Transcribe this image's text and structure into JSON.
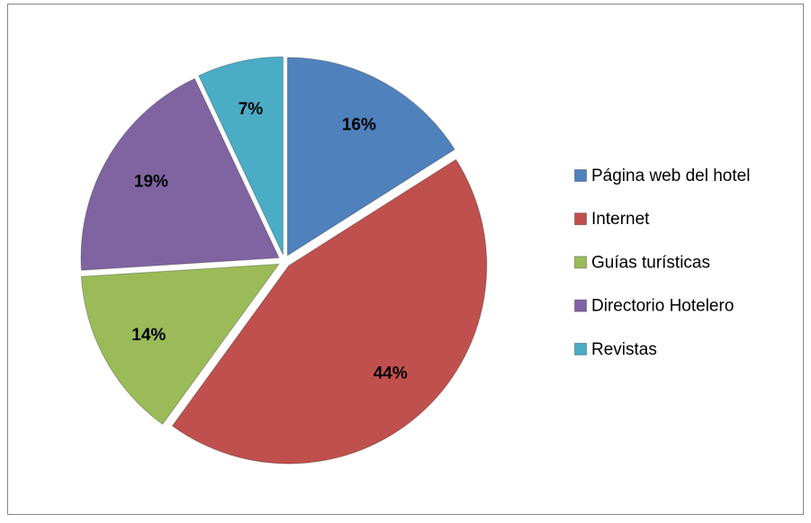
{
  "chart_data": {
    "type": "pie",
    "categories": [
      "Página web del hotel",
      "Internet",
      "Guías turísticas",
      "Directorio Hotelero",
      "Revistas"
    ],
    "values": [
      16,
      44,
      14,
      19,
      7
    ],
    "value_labels": [
      "16%",
      "44%",
      "14%",
      "19%",
      "7%"
    ],
    "colors": [
      "#4f81bd",
      "#c0504d",
      "#9bbb59",
      "#8064a2",
      "#4bacc6"
    ],
    "legend": "right"
  }
}
